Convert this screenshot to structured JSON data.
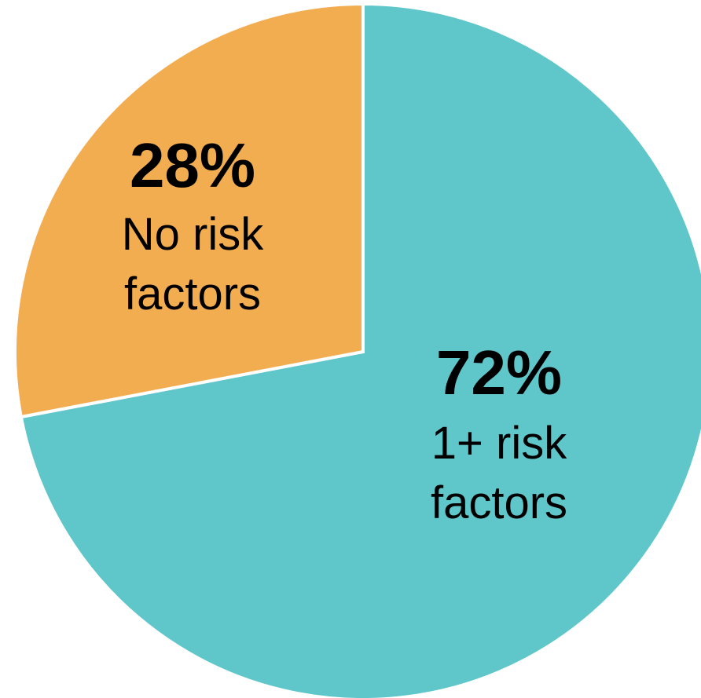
{
  "chart_data": {
    "type": "pie",
    "title": "",
    "slices": [
      {
        "value": 72,
        "percent_label": "72%",
        "label_lines": [
          "1+ risk",
          "factors"
        ],
        "color": "#5fc6ca"
      },
      {
        "value": 28,
        "percent_label": "28%",
        "label_lines": [
          "No risk",
          "factors"
        ],
        "color": "#f3ad51"
      }
    ],
    "start_angle": "12 o'clock",
    "direction": "clockwise",
    "legend": "none"
  }
}
